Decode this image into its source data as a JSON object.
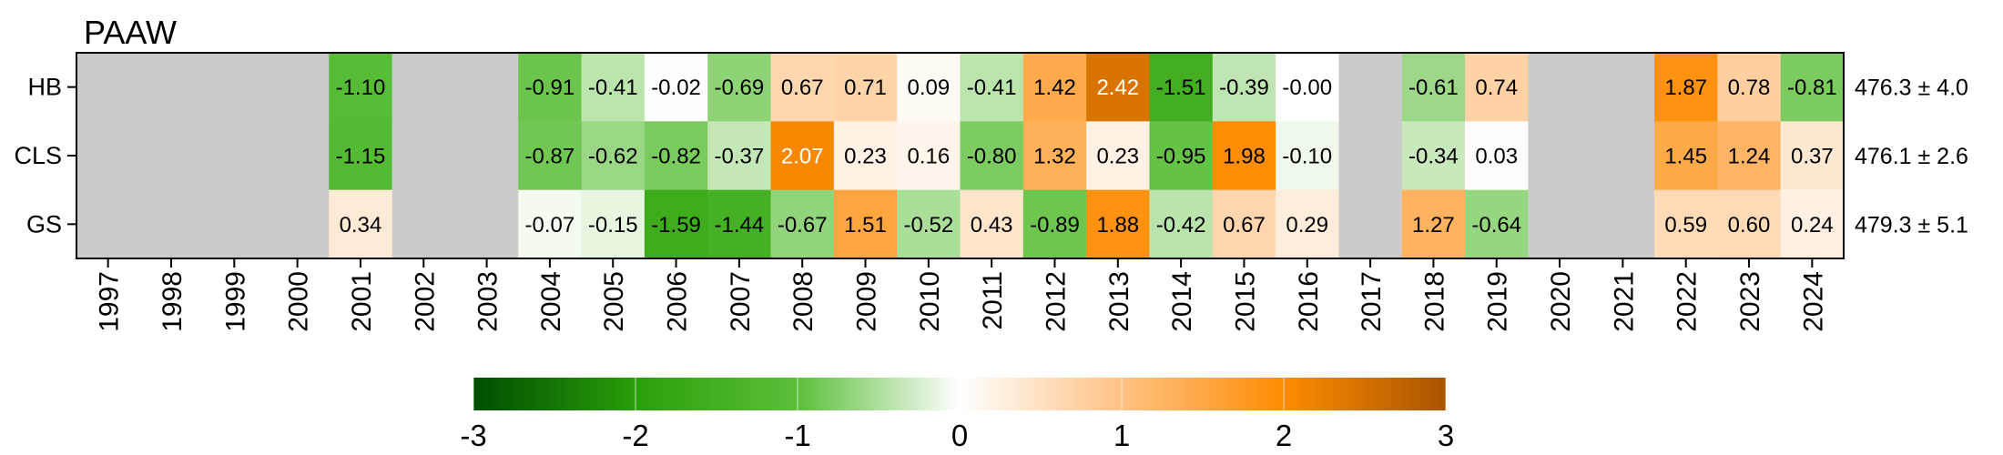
{
  "chart_data": {
    "type": "heatmap",
    "title": "PAAW",
    "years": [
      "1997",
      "1998",
      "1999",
      "2000",
      "2001",
      "2002",
      "2003",
      "2004",
      "2005",
      "2006",
      "2007",
      "2008",
      "2009",
      "2010",
      "2011",
      "2012",
      "2013",
      "2014",
      "2015",
      "2016",
      "2017",
      "2018",
      "2019",
      "2020",
      "2021",
      "2022",
      "2023",
      "2024"
    ],
    "rows": [
      {
        "name": "HB",
        "summary": "476.3 ± 4.0",
        "values": [
          null,
          null,
          null,
          null,
          -1.1,
          null,
          null,
          -0.91,
          -0.41,
          -0.02,
          -0.69,
          0.67,
          0.71,
          0.09,
          -0.41,
          1.42,
          2.42,
          -1.51,
          -0.39,
          -0.0,
          null,
          -0.61,
          0.74,
          null,
          null,
          1.87,
          0.78,
          -0.81
        ],
        "labels": [
          "",
          "",
          "",
          "",
          "-1.10",
          "",
          "",
          "-0.91",
          "-0.41",
          "-0.02",
          "-0.69",
          "0.67",
          "0.71",
          "0.09",
          "-0.41",
          "1.42",
          "2.42",
          "-1.51",
          "-0.39",
          "-0.00",
          "",
          "-0.61",
          "0.74",
          "",
          "",
          "1.87",
          "0.78",
          "-0.81"
        ]
      },
      {
        "name": "CLS",
        "summary": "476.1 ± 2.6",
        "values": [
          null,
          null,
          null,
          null,
          -1.15,
          null,
          null,
          -0.87,
          -0.62,
          -0.82,
          -0.37,
          2.07,
          0.23,
          0.16,
          -0.8,
          1.32,
          0.23,
          -0.95,
          1.98,
          -0.1,
          null,
          -0.34,
          0.03,
          null,
          null,
          1.45,
          1.24,
          0.37
        ],
        "labels": [
          "",
          "",
          "",
          "",
          "-1.15",
          "",
          "",
          "-0.87",
          "-0.62",
          "-0.82",
          "-0.37",
          "2.07",
          "0.23",
          "0.16",
          "-0.80",
          "1.32",
          "0.23",
          "-0.95",
          "1.98",
          "-0.10",
          "",
          "-0.34",
          "0.03",
          "",
          "",
          "1.45",
          "1.24",
          "0.37"
        ]
      },
      {
        "name": "GS",
        "summary": "479.3 ± 5.1",
        "values": [
          null,
          null,
          null,
          null,
          0.34,
          null,
          null,
          -0.07,
          -0.15,
          -1.59,
          -1.44,
          -0.67,
          1.51,
          -0.52,
          0.43,
          -0.89,
          1.88,
          -0.42,
          0.67,
          0.29,
          null,
          1.27,
          -0.64,
          null,
          null,
          0.59,
          0.6,
          0.24
        ],
        "labels": [
          "",
          "",
          "",
          "",
          "0.34",
          "",
          "",
          "-0.07",
          "-0.15",
          "-1.59",
          "-1.44",
          "-0.67",
          "1.51",
          "-0.52",
          "0.43",
          "-0.89",
          "1.88",
          "-0.42",
          "0.67",
          "0.29",
          "",
          "1.27",
          "-0.64",
          "",
          "",
          "0.59",
          "0.60",
          "0.24"
        ]
      }
    ],
    "colorbar": {
      "range": [
        -3,
        3
      ],
      "ticks": [
        "-3",
        "-2",
        "-1",
        "0",
        "1",
        "2",
        "3"
      ],
      "colors": [
        "#004d00",
        "#2a9e0a",
        "#5cbf3a",
        "#ffffff",
        "#ffc285",
        "#ff8c00",
        "#a85400"
      ]
    },
    "missing_color": "#cbcbcb"
  }
}
